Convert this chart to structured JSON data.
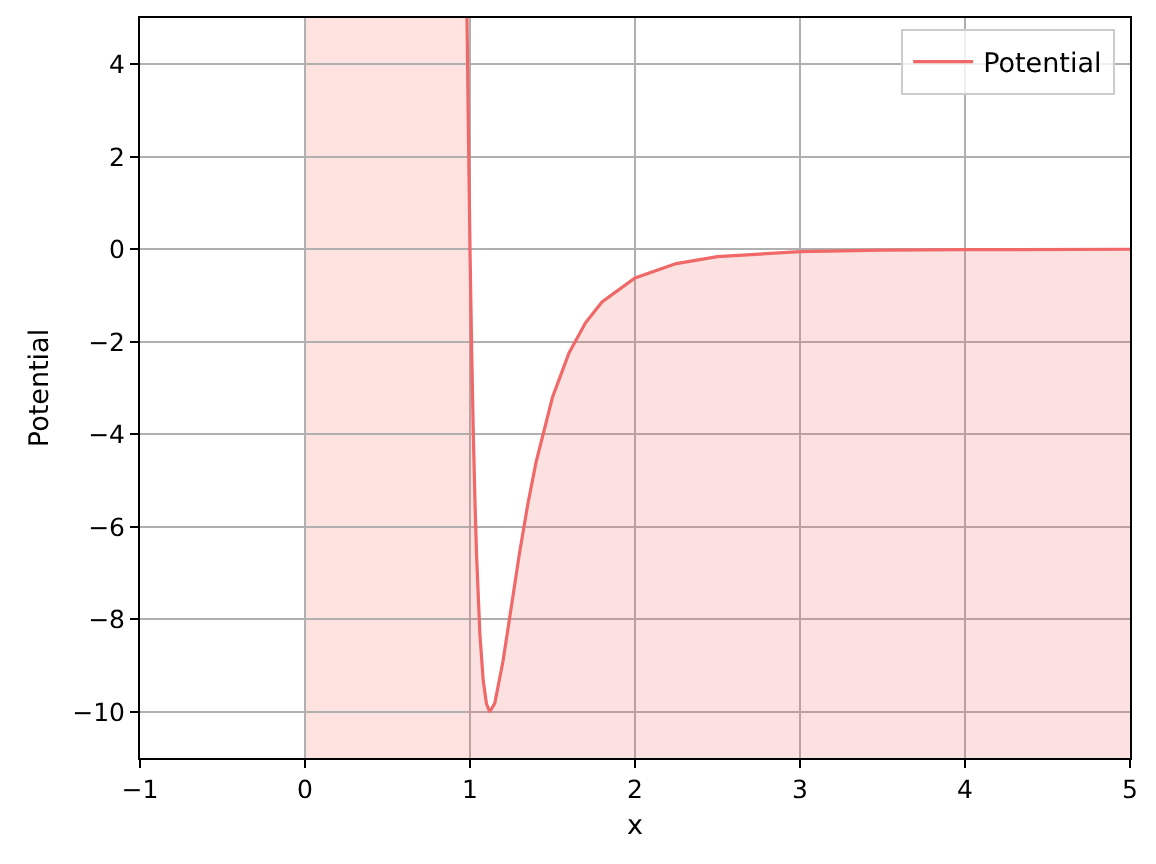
{
  "chart_data": {
    "type": "line",
    "xlabel": "x",
    "ylabel": "Potential",
    "xlim": [
      -1,
      5
    ],
    "ylim": [
      -11,
      5
    ],
    "xticks": [
      {
        "value": -1,
        "label": "−1"
      },
      0,
      1,
      2,
      3,
      4,
      5
    ],
    "yticks": [
      {
        "value": -10,
        "label": "−10"
      },
      {
        "value": -8,
        "label": "−8"
      },
      {
        "value": -6,
        "label": "−6"
      },
      {
        "value": -4,
        "label": "−4"
      },
      {
        "value": -2,
        "label": "−2"
      },
      0,
      2,
      4
    ],
    "grid": true,
    "legend": "top right",
    "marker": "none",
    "line_style": "solid",
    "series": [
      {
        "name": "Potential",
        "color": "#f06868",
        "x": [
          0.982,
          0.99,
          1.0,
          1.01,
          1.02,
          1.03,
          1.04,
          1.06,
          1.08,
          1.1,
          1.12,
          1.15,
          1.2,
          1.25,
          1.3,
          1.35,
          1.4,
          1.5,
          1.6,
          1.7,
          1.8,
          2.0,
          2.25,
          2.5,
          3.0,
          3.5,
          4.0,
          5.0
        ],
        "values": [
          5.0,
          2.64,
          0.0,
          -2.18,
          -3.98,
          -5.44,
          -6.63,
          -8.32,
          -9.32,
          -9.83,
          -10.0,
          -9.82,
          -8.91,
          -7.74,
          -6.57,
          -5.52,
          -4.61,
          -3.2,
          -2.24,
          -1.59,
          -1.14,
          -0.62,
          -0.31,
          -0.16,
          -0.05,
          -0.02,
          -0.01,
          0.0
        ],
        "lower": [
          -11,
          -11,
          -11,
          -11,
          -11,
          -11,
          -11,
          -11,
          -11,
          -11,
          -11,
          -11,
          -11,
          -11,
          -11,
          -11,
          -11,
          -11,
          -11,
          -11,
          -11,
          -11,
          -11,
          -11,
          -11,
          -11,
          -11,
          -11
        ],
        "upper": [
          5.0,
          2.64,
          0.0,
          -2.18,
          -3.98,
          -5.44,
          -6.63,
          -8.32,
          -9.32,
          -9.83,
          -10.0,
          -9.82,
          -8.91,
          -7.74,
          -6.57,
          -5.52,
          -4.61,
          -3.2,
          -2.24,
          -1.59,
          -1.14,
          -0.62,
          -0.31,
          -0.16,
          -0.05,
          -0.02,
          -0.01,
          0.0
        ]
      }
    ],
    "bands": [
      {
        "axis": "x",
        "from": 0,
        "to": 0.982,
        "color": "#fde2e0"
      }
    ]
  }
}
